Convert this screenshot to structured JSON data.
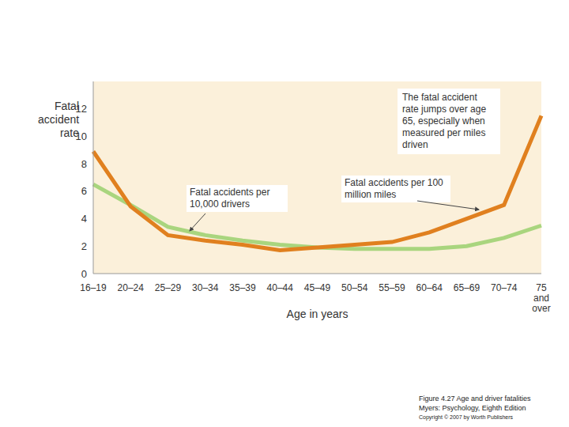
{
  "chart_data": {
    "type": "line",
    "x_label": "Age in years",
    "y_label": "Fatal accident rate",
    "categories": [
      "16–19",
      "20–24",
      "25–29",
      "30–34",
      "35–39",
      "40–44",
      "45–49",
      "50–54",
      "55–59",
      "60–64",
      "65–69",
      "70–74",
      "75 and over"
    ],
    "series": [
      {
        "name": "Fatal accidents per 10,000 drivers",
        "color": "#a9d57e",
        "values": [
          6.5,
          5.0,
          3.4,
          2.8,
          2.4,
          2.1,
          1.9,
          1.8,
          1.8,
          1.8,
          2.0,
          2.6,
          3.5
        ]
      },
      {
        "name": "Fatal accidents per 100 million miles",
        "color": "#e0801f",
        "values": [
          8.9,
          4.9,
          2.8,
          2.4,
          2.1,
          1.7,
          1.9,
          2.1,
          2.3,
          3.0,
          4.0,
          5.0,
          11.5
        ]
      }
    ],
    "ylim": [
      0,
      14
    ],
    "yticks": [
      0,
      2,
      4,
      6,
      8,
      10,
      12
    ],
    "grid": false,
    "annotations": [
      "The fatal accident rate jumps over age 65, especially when measured per miles driven"
    ],
    "caption": [
      "Figure 4.27 Age and driver fatalities",
      "Myers: Psychology, Eighth Edition",
      "Copyright © 2007 by Worth Publishers"
    ]
  }
}
